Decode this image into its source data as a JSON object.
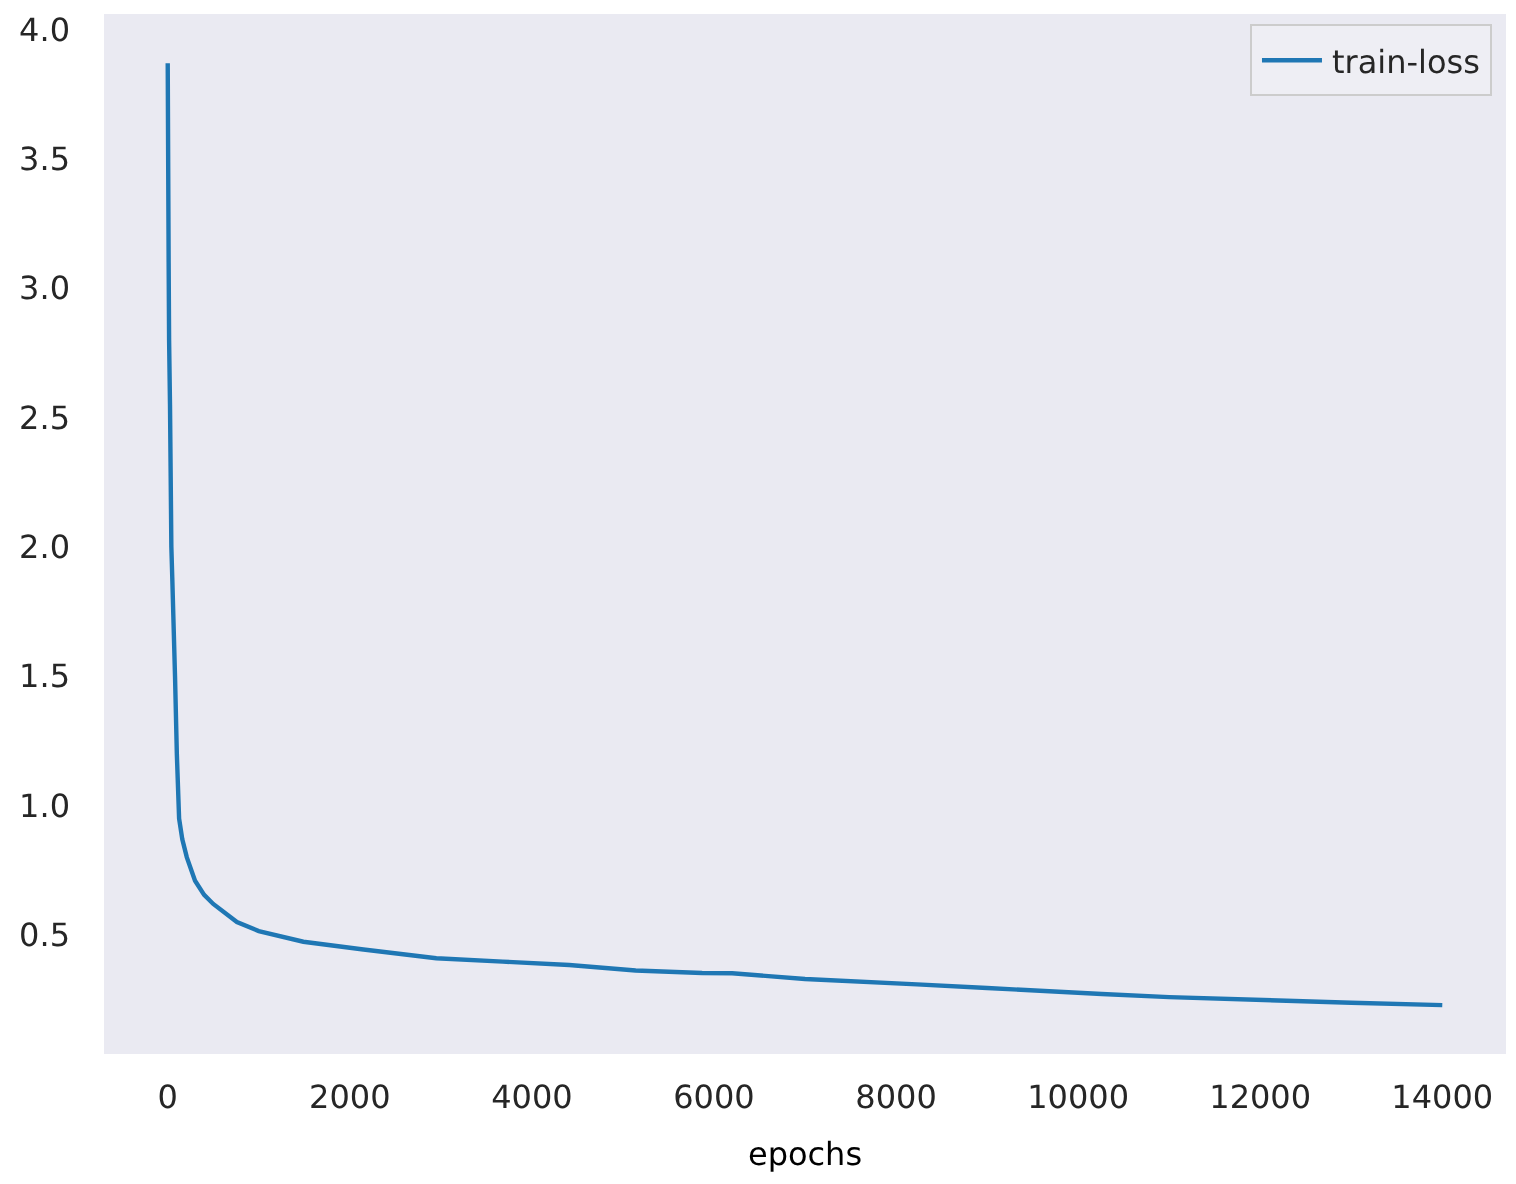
{
  "chart_data": {
    "type": "line",
    "xlabel": "epochs",
    "x": [
      0,
      10,
      15,
      25,
      40,
      50,
      80,
      100,
      125,
      160,
      210,
      300,
      400,
      500,
      760,
      1000,
      1490,
      2150,
      2950,
      3680,
      4410,
      5140,
      5870,
      6200,
      7000,
      8230,
      9000,
      10260,
      11000,
      12290,
      13000,
      14000
    ],
    "series": [
      {
        "name": "train-loss",
        "color": "#1f77b4",
        "values": [
          3.87,
          3.1,
          2.8,
          2.55,
          2.0,
          1.88,
          1.5,
          1.2,
          0.95,
          0.87,
          0.8,
          0.71,
          0.655,
          0.62,
          0.55,
          0.515,
          0.474,
          0.444,
          0.41,
          0.397,
          0.384,
          0.363,
          0.353,
          0.352,
          0.33,
          0.309,
          0.295,
          0.272,
          0.26,
          0.246,
          0.238,
          0.229
        ]
      }
    ],
    "xlim": [
      -700,
      14700
    ],
    "ylim": [
      0.04,
      4.06
    ],
    "xticks": [
      0,
      2000,
      4000,
      6000,
      8000,
      10000,
      12000,
      14000
    ],
    "yticks": [
      0.5,
      {
        "value": 1,
        "label": "1.0"
      },
      1.5,
      {
        "value": 2,
        "label": "2.0"
      },
      2.5,
      {
        "value": 3,
        "label": "3.0"
      },
      3.5,
      {
        "value": 4,
        "label": "4.0"
      }
    ],
    "grid": false,
    "legend": "top right",
    "line_style": "solid"
  }
}
